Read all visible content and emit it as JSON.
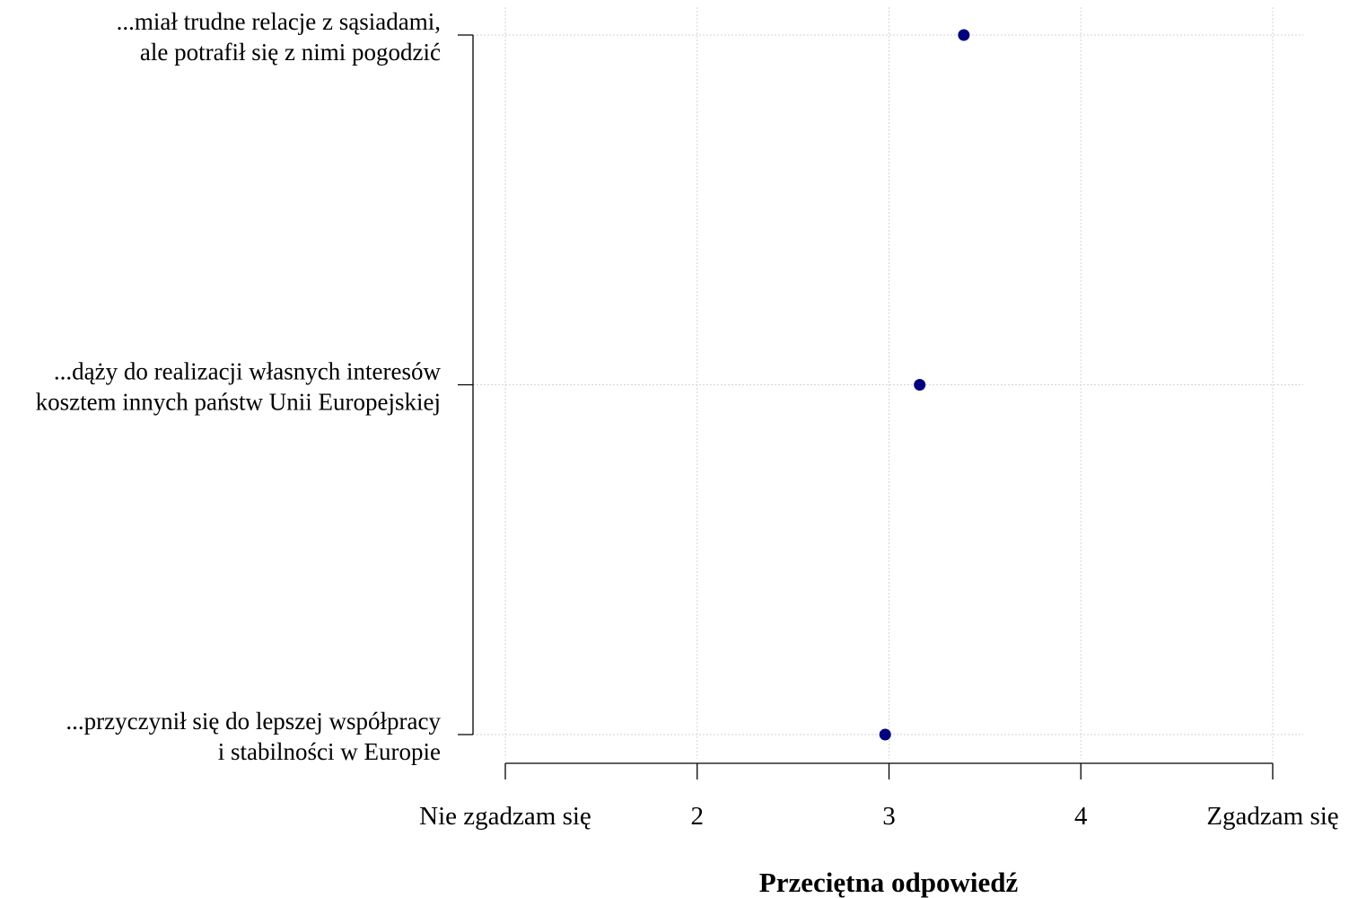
{
  "chart_data": {
    "type": "scatter",
    "orientation": "horizontal",
    "categories": [
      [
        "...miał trudne relacje z sąsiadami,",
        "ale potrafił się z nimi pogodzić"
      ],
      [
        "...dąży do realizacji własnych interesów",
        "kosztem innych państw Unii Europejskiej"
      ],
      [
        "...przyczynił się do lepszej współpracy",
        "i stabilności w Europie"
      ]
    ],
    "values": [
      3.39,
      3.16,
      2.98
    ],
    "xlim": [
      1,
      5
    ],
    "x_ticks": [
      1,
      2,
      3,
      4,
      5
    ],
    "x_tick_labels": [
      "Nie zgadzam się",
      "2",
      "3",
      "4",
      "Zgadzam się"
    ],
    "xlabel": "Przeciętna odpowiedź",
    "ylabel": "",
    "title": "",
    "grid": true,
    "point_color": "#000080",
    "grid_color": "#d3d3d3"
  }
}
